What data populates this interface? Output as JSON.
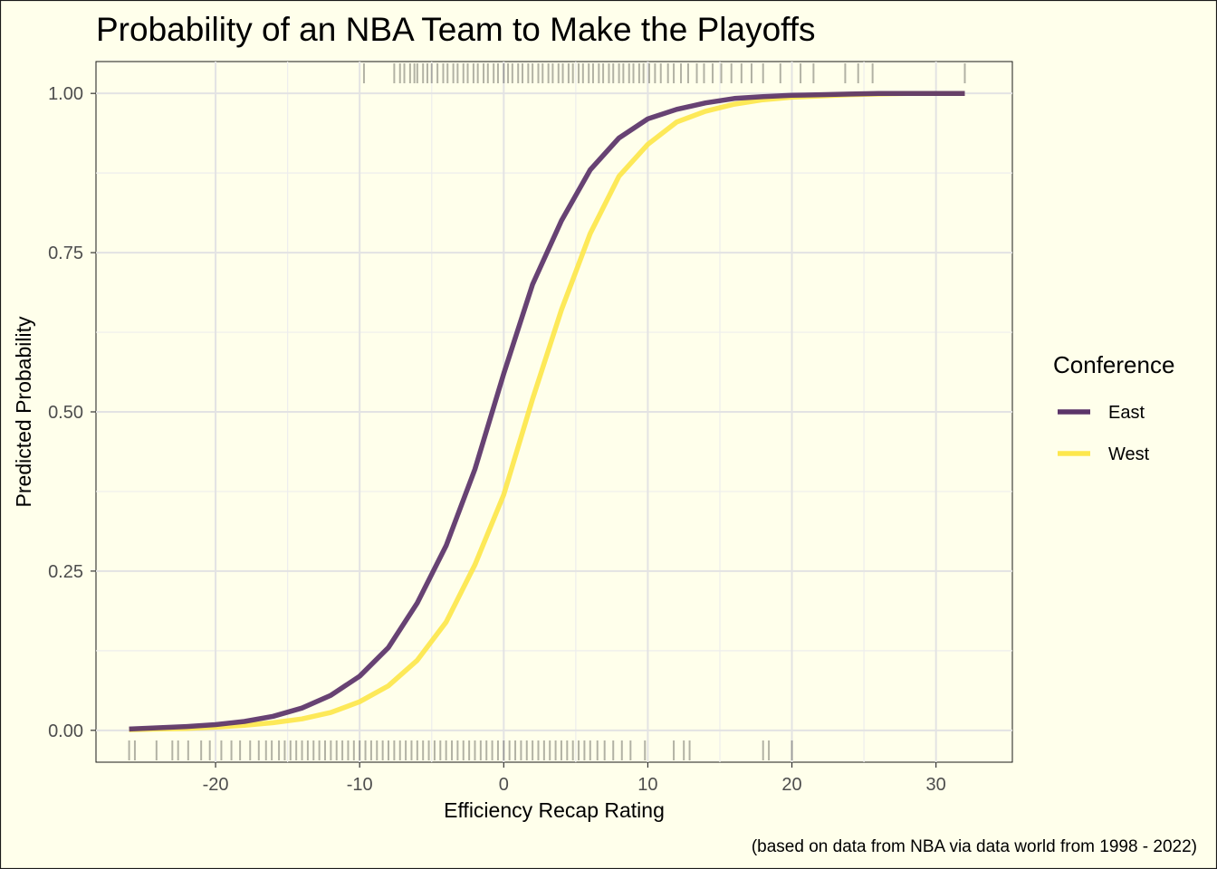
{
  "chart_data": {
    "type": "line",
    "title": "Probability of an NBA Team to Make the Playoffs",
    "xlabel": "Efficiency Recap Rating",
    "ylabel": "Predicted Probability",
    "caption": "(based on data from NBA via data world from 1998 - 2022)",
    "xlim": [
      -28.3,
      35.3
    ],
    "ylim": [
      -0.05,
      1.05
    ],
    "x_ticks": [
      -20,
      -10,
      0,
      10,
      20,
      30
    ],
    "x_tick_labels": [
      "-20",
      "-10",
      "0",
      "10",
      "20",
      "30"
    ],
    "y_ticks": [
      0,
      0.25,
      0.5,
      0.75,
      1.0
    ],
    "y_tick_labels": [
      "0.00",
      "0.25",
      "0.50",
      "0.75",
      "1.00"
    ],
    "grid": true,
    "legend": {
      "title": "Conference",
      "placement": "right"
    },
    "x": [
      -26,
      -24,
      -22,
      -20,
      -18,
      -16,
      -14,
      -12,
      -10,
      -8,
      -6,
      -4,
      -2,
      0,
      2,
      4,
      6,
      8,
      10,
      12,
      14,
      16,
      18,
      20,
      22,
      24,
      26,
      28,
      30,
      32
    ],
    "series": [
      {
        "name": "East",
        "color": "#5B3469",
        "values": [
          0.002,
          0.004,
          0.006,
          0.009,
          0.014,
          0.022,
          0.035,
          0.055,
          0.085,
          0.13,
          0.2,
          0.29,
          0.41,
          0.56,
          0.7,
          0.8,
          0.88,
          0.93,
          0.96,
          0.975,
          0.985,
          0.992,
          0.995,
          0.997,
          0.998,
          0.999,
          1.0,
          1.0,
          1.0,
          1.0
        ]
      },
      {
        "name": "West",
        "color": "#FDE74C",
        "values": [
          0.001,
          0.002,
          0.003,
          0.005,
          0.008,
          0.012,
          0.018,
          0.028,
          0.045,
          0.07,
          0.11,
          0.17,
          0.26,
          0.37,
          0.52,
          0.66,
          0.78,
          0.87,
          0.92,
          0.955,
          0.972,
          0.983,
          0.99,
          0.994,
          0.996,
          0.998,
          0.999,
          1.0,
          1.0,
          1.0
        ]
      }
    ],
    "rug_top_x": [
      -9.7,
      -7.6,
      -7.2,
      -6.9,
      -6.5,
      -6.2,
      -6.0,
      -5.6,
      -5.3,
      -5.0,
      -4.6,
      -4.2,
      -3.9,
      -3.5,
      -3.2,
      -2.8,
      -2.5,
      -2.1,
      -1.8,
      -1.4,
      -1.1,
      -0.7,
      -0.4,
      0.0,
      0.3,
      0.6,
      1.0,
      1.3,
      1.7,
      2.0,
      2.4,
      2.7,
      3.1,
      3.4,
      3.8,
      4.1,
      4.5,
      4.8,
      5.2,
      5.5,
      5.9,
      6.2,
      6.6,
      6.9,
      7.3,
      7.6,
      8.0,
      8.3,
      8.7,
      9.0,
      9.4,
      9.7,
      10.1,
      10.5,
      10.9,
      11.4,
      11.8,
      12.3,
      12.8,
      13.4,
      13.9,
      14.5,
      15.1,
      15.8,
      16.5,
      17.2,
      18.0,
      19.2,
      20.6,
      21.5,
      23.7,
      24.6,
      25.6,
      32.0
    ],
    "rug_bottom_x": [
      -26.0,
      -25.6,
      -24.1,
      -23.0,
      -22.6,
      -21.9,
      -21.0,
      -20.4,
      -19.6,
      -18.9,
      -18.3,
      -17.6,
      -17.0,
      -16.5,
      -16.1,
      -15.6,
      -15.2,
      -14.8,
      -14.4,
      -14.0,
      -13.6,
      -13.2,
      -12.8,
      -12.4,
      -12.0,
      -11.6,
      -11.2,
      -10.8,
      -10.4,
      -10.0,
      -9.6,
      -9.2,
      -8.8,
      -8.4,
      -8.0,
      -7.6,
      -7.2,
      -6.8,
      -6.4,
      -6.0,
      -5.6,
      -5.2,
      -4.8,
      -4.4,
      -4.0,
      -3.6,
      -3.2,
      -2.8,
      -2.4,
      -2.0,
      -1.6,
      -1.2,
      -0.8,
      -0.4,
      0.0,
      0.4,
      0.8,
      1.2,
      1.6,
      2.0,
      2.4,
      2.8,
      3.2,
      3.6,
      4.0,
      4.4,
      4.8,
      5.2,
      5.6,
      6.0,
      6.5,
      7.0,
      7.6,
      8.2,
      8.8,
      9.8,
      11.8,
      12.5,
      12.9,
      18.0,
      18.4,
      20.0
    ]
  }
}
